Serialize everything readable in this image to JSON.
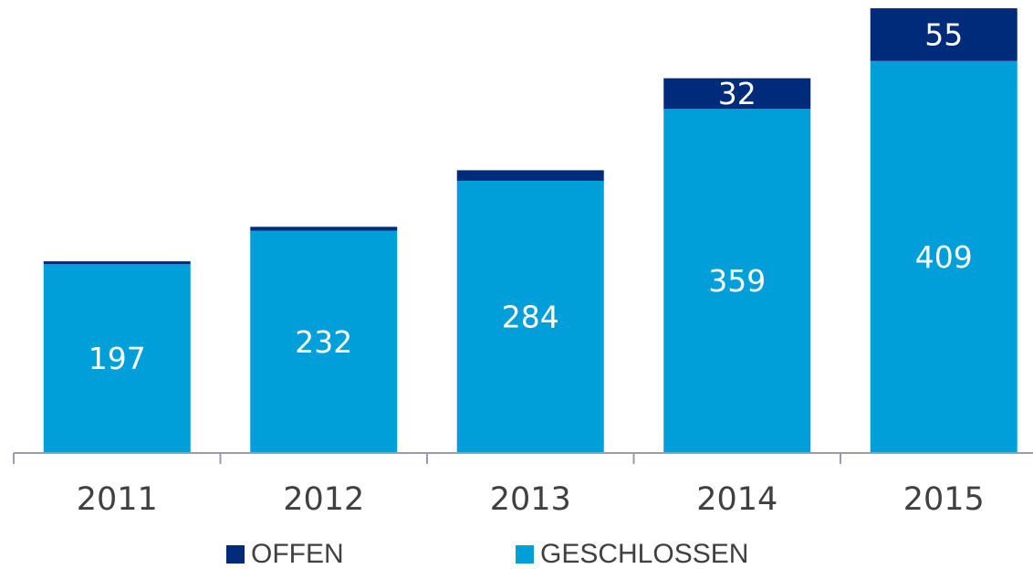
{
  "chart_data": {
    "type": "stacked_bar",
    "categories": [
      "2011",
      "2012",
      "2013",
      "2014",
      "2015"
    ],
    "series": [
      {
        "name": "GESCHLOSSEN",
        "color": "#009fda",
        "values": [
          197,
          232,
          284,
          359,
          409
        ],
        "value_labels": [
          "197",
          "232",
          "284",
          "359",
          "409"
        ]
      },
      {
        "name": "OFFEN",
        "color": "#002a7a",
        "values": [
          3,
          4,
          11,
          32,
          55
        ],
        "value_labels": [
          null,
          null,
          null,
          "32",
          "55"
        ]
      }
    ],
    "legend_order": [
      1,
      0
    ],
    "ylim": [
      0,
      465
    ],
    "legend": "bottom"
  }
}
